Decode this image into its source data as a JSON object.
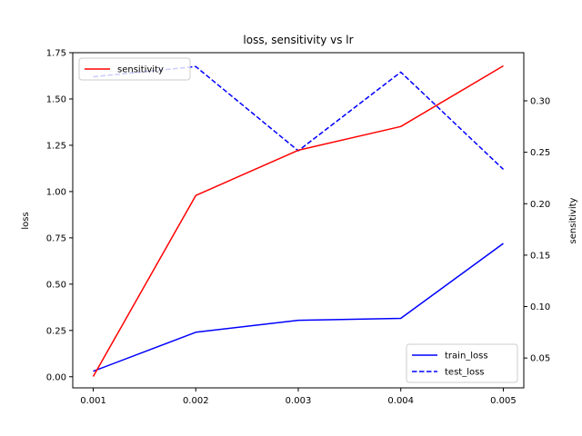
{
  "chart_data": {
    "type": "line",
    "title": "loss, sensitivity vs lr",
    "x": [
      0.001,
      0.002,
      0.003,
      0.004,
      0.005
    ],
    "x_tick_labels": [
      "0.001",
      "0.002",
      "0.003",
      "0.004",
      "0.005"
    ],
    "xlim": [
      0.0008,
      0.0052
    ],
    "left_axis": {
      "ylabel": "loss",
      "ylim": [
        -0.06,
        1.75
      ],
      "ticks": [
        0.0,
        0.25,
        0.5,
        0.75,
        1.0,
        1.25,
        1.5,
        1.75
      ],
      "tick_labels": [
        "0.00",
        "0.25",
        "0.50",
        "0.75",
        "1.00",
        "1.25",
        "1.50",
        "1.75"
      ]
    },
    "right_axis": {
      "ylabel": "sensitivity",
      "ylim": [
        0.021,
        0.3468
      ],
      "ticks": [
        0.05,
        0.1,
        0.15,
        0.2,
        0.25,
        0.3
      ],
      "tick_labels": [
        "0.05",
        "0.10",
        "0.15",
        "0.20",
        "0.25",
        "0.30"
      ]
    },
    "series": [
      {
        "name": "train_loss",
        "axis": "left",
        "color": "#0000ff",
        "style": "solid",
        "values": [
          0.03,
          0.24,
          0.305,
          0.315,
          0.72
        ]
      },
      {
        "name": "test_loss",
        "axis": "left",
        "color": "#0000ff",
        "style": "dashed",
        "values": [
          1.62,
          1.675,
          1.22,
          1.645,
          1.12
        ]
      },
      {
        "name": "sensitivity",
        "axis": "right",
        "color": "#ff0000",
        "style": "solid",
        "values": [
          0.032,
          0.208,
          0.252,
          0.275,
          0.334
        ]
      }
    ],
    "legends": [
      {
        "placement": "upper-left",
        "entries": [
          "sensitivity"
        ]
      },
      {
        "placement": "lower-right",
        "entries": [
          "train_loss",
          "test_loss"
        ]
      }
    ],
    "grid": false
  }
}
